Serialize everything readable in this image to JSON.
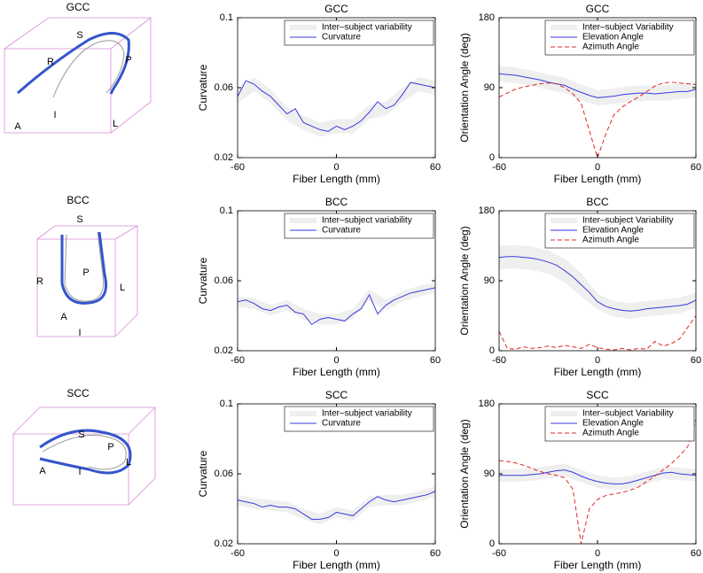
{
  "renders": [
    {
      "title": "GCC",
      "labels": [
        "S",
        "R",
        "P",
        "A",
        "L",
        "I"
      ]
    },
    {
      "title": "BCC",
      "labels": [
        "S",
        "P",
        "R",
        "L",
        "A",
        "I"
      ]
    },
    {
      "title": "SCC",
      "labels": [
        "S",
        "P",
        "A",
        "I",
        "L"
      ]
    }
  ],
  "chart_data": [
    {
      "type": "line",
      "title": "GCC",
      "xlabel": "Fiber Length (mm)",
      "ylabel": "Curvature",
      "x": [
        -60,
        -55,
        -50,
        -45,
        -40,
        -35,
        -30,
        -25,
        -20,
        -15,
        -10,
        -5,
        0,
        5,
        10,
        15,
        20,
        25,
        30,
        35,
        40,
        45,
        50,
        55,
        60
      ],
      "xlim": [
        -60,
        60
      ],
      "xticks": [
        -60,
        0,
        60
      ],
      "ylim": [
        0.02,
        0.1
      ],
      "yticks": [
        0.02,
        0.06,
        0.1
      ],
      "series": [
        {
          "name": "Inter–subject variability",
          "color": "#efefef",
          "x": [
            -60,
            -50,
            -40,
            -30,
            -20,
            -10,
            0,
            10,
            20,
            30,
            40,
            50,
            60
          ],
          "lower": [
            0.051,
            0.058,
            0.051,
            0.041,
            0.036,
            0.032,
            0.034,
            0.034,
            0.042,
            0.044,
            0.052,
            0.058,
            0.056
          ],
          "upper": [
            0.059,
            0.066,
            0.059,
            0.049,
            0.044,
            0.04,
            0.042,
            0.042,
            0.05,
            0.052,
            0.06,
            0.066,
            0.064
          ]
        },
        {
          "name": "Curvature",
          "color": "#3a3adf",
          "style": "solid",
          "values": [
            0.055,
            0.064,
            0.062,
            0.058,
            0.055,
            0.05,
            0.045,
            0.048,
            0.04,
            0.038,
            0.036,
            0.035,
            0.038,
            0.036,
            0.038,
            0.041,
            0.046,
            0.052,
            0.048,
            0.05,
            0.056,
            0.063,
            0.062,
            0.061,
            0.06
          ]
        }
      ]
    },
    {
      "type": "line",
      "title": "GCC",
      "xlabel": "Fiber Length (mm)",
      "ylabel": "Orientation Angle (deg)",
      "x": [
        -60,
        -55,
        -50,
        -45,
        -40,
        -35,
        -30,
        -25,
        -20,
        -15,
        -10,
        -5,
        0,
        5,
        10,
        15,
        20,
        25,
        30,
        35,
        40,
        45,
        50,
        55,
        60
      ],
      "xlim": [
        -60,
        60
      ],
      "xticks": [
        -60,
        0,
        60
      ],
      "ylim": [
        0,
        180
      ],
      "yticks": [
        0,
        90,
        180
      ],
      "series": [
        {
          "name": "Inter–subject Variability",
          "color": "#efefef",
          "x": [
            -60,
            -50,
            -40,
            -30,
            -20,
            -10,
            0,
            10,
            20,
            30,
            40,
            50,
            60
          ],
          "lower": [
            98,
            96,
            92,
            87,
            83,
            74,
            67,
            69,
            72,
            73,
            73,
            75,
            78
          ],
          "upper": [
            118,
            116,
            112,
            107,
            103,
            94,
            87,
            89,
            92,
            93,
            93,
            95,
            98
          ]
        },
        {
          "name": "Elevation Angle",
          "color": "#3a3adf",
          "style": "solid",
          "values": [
            108,
            107,
            106,
            104,
            102,
            100,
            97,
            95,
            93,
            88,
            84,
            80,
            77,
            78,
            79,
            81,
            82,
            83,
            83,
            82,
            83,
            84,
            85,
            85,
            88
          ]
        },
        {
          "name": "Azimuth Angle",
          "color": "#e02828",
          "style": "dashed",
          "values": [
            78,
            83,
            88,
            91,
            93,
            95,
            96,
            95,
            90,
            82,
            70,
            35,
            0,
            30,
            55,
            65,
            72,
            78,
            85,
            92,
            96,
            97,
            96,
            95,
            94
          ]
        }
      ]
    },
    {
      "type": "line",
      "title": "BCC",
      "xlabel": "Fiber Length (mm)",
      "ylabel": "Curvature",
      "x": [
        -60,
        -55,
        -50,
        -45,
        -40,
        -35,
        -30,
        -25,
        -20,
        -15,
        -10,
        -5,
        0,
        5,
        10,
        15,
        20,
        25,
        30,
        35,
        40,
        45,
        50,
        55,
        60
      ],
      "xlim": [
        -60,
        60
      ],
      "xticks": [
        -60,
        0,
        60
      ],
      "ylim": [
        0.02,
        0.1
      ],
      "yticks": [
        0.02,
        0.06,
        0.1
      ],
      "series": [
        {
          "name": "Inter–subject variability",
          "color": "#efefef",
          "x": [
            -60,
            -50,
            -40,
            -30,
            -20,
            -10,
            0,
            10,
            20,
            30,
            40,
            50,
            60
          ],
          "lower": [
            0.045,
            0.044,
            0.04,
            0.043,
            0.038,
            0.035,
            0.035,
            0.038,
            0.049,
            0.043,
            0.048,
            0.051,
            0.053
          ],
          "upper": [
            0.051,
            0.05,
            0.046,
            0.049,
            0.044,
            0.041,
            0.041,
            0.044,
            0.055,
            0.049,
            0.054,
            0.057,
            0.059
          ]
        },
        {
          "name": "Curvature",
          "color": "#3a3adf",
          "style": "solid",
          "values": [
            0.048,
            0.049,
            0.047,
            0.044,
            0.043,
            0.045,
            0.046,
            0.042,
            0.041,
            0.035,
            0.038,
            0.039,
            0.038,
            0.037,
            0.041,
            0.044,
            0.052,
            0.041,
            0.046,
            0.049,
            0.051,
            0.053,
            0.054,
            0.055,
            0.056
          ]
        }
      ]
    },
    {
      "type": "line",
      "title": "BCC",
      "xlabel": "Fiber Length (mm)",
      "ylabel": "Orientation Angle (deg)",
      "x": [
        -60,
        -55,
        -50,
        -45,
        -40,
        -35,
        -30,
        -25,
        -20,
        -15,
        -10,
        -5,
        0,
        5,
        10,
        15,
        20,
        25,
        30,
        35,
        40,
        45,
        50,
        55,
        60
      ],
      "xlim": [
        -60,
        60
      ],
      "xticks": [
        -60,
        0,
        60
      ],
      "ylim": [
        0,
        180
      ],
      "yticks": [
        0,
        90,
        180
      ],
      "series": [
        {
          "name": "Inter–subject Variability",
          "color": "#efefef",
          "x": [
            -60,
            -50,
            -40,
            -30,
            -20,
            -10,
            0,
            10,
            20,
            30,
            40,
            50,
            60
          ],
          "lower": [
            105,
            106,
            104,
            99,
            88,
            70,
            53,
            44,
            41,
            44,
            46,
            48,
            55
          ],
          "upper": [
            135,
            136,
            134,
            129,
            118,
            100,
            73,
            64,
            61,
            64,
            66,
            68,
            75
          ]
        },
        {
          "name": "Elevation Angle",
          "color": "#3a3adf",
          "style": "solid",
          "values": [
            120,
            121,
            121,
            120,
            119,
            117,
            114,
            110,
            103,
            95,
            85,
            75,
            63,
            57,
            54,
            52,
            51,
            52,
            54,
            55,
            56,
            57,
            58,
            60,
            65
          ]
        },
        {
          "name": "Azimuth Angle",
          "color": "#e02828",
          "style": "dashed",
          "values": [
            25,
            3,
            2,
            5,
            3,
            4,
            6,
            4,
            7,
            5,
            3,
            8,
            4,
            2,
            1,
            3,
            1,
            3,
            2,
            12,
            6,
            9,
            15,
            30,
            45
          ]
        }
      ]
    },
    {
      "type": "line",
      "title": "SCC",
      "xlabel": "Fiber Length (mm)",
      "ylabel": "Curvature",
      "x": [
        -60,
        -55,
        -50,
        -45,
        -40,
        -35,
        -30,
        -25,
        -20,
        -15,
        -10,
        -5,
        0,
        5,
        10,
        15,
        20,
        25,
        30,
        35,
        40,
        45,
        50,
        55,
        60
      ],
      "xlim": [
        -60,
        60
      ],
      "xticks": [
        -60,
        0,
        60
      ],
      "ylim": [
        0.02,
        0.1
      ],
      "yticks": [
        0.02,
        0.06,
        0.1
      ],
      "series": [
        {
          "name": "Inter–subject variability",
          "color": "#efefef",
          "x": [
            -60,
            -50,
            -40,
            -30,
            -20,
            -10,
            0,
            10,
            20,
            30,
            40,
            50,
            60
          ],
          "lower": [
            0.042,
            0.04,
            0.039,
            0.038,
            0.034,
            0.031,
            0.035,
            0.033,
            0.041,
            0.042,
            0.042,
            0.044,
            0.047
          ],
          "upper": [
            0.048,
            0.046,
            0.045,
            0.044,
            0.04,
            0.037,
            0.041,
            0.039,
            0.047,
            0.048,
            0.048,
            0.05,
            0.053
          ]
        },
        {
          "name": "Curvature",
          "color": "#3a3adf",
          "style": "solid",
          "values": [
            0.045,
            0.044,
            0.043,
            0.041,
            0.042,
            0.041,
            0.041,
            0.04,
            0.037,
            0.034,
            0.034,
            0.035,
            0.038,
            0.037,
            0.036,
            0.04,
            0.044,
            0.047,
            0.045,
            0.044,
            0.045,
            0.046,
            0.047,
            0.048,
            0.05
          ]
        }
      ]
    },
    {
      "type": "line",
      "title": "SCC",
      "xlabel": "Fiber Length (mm)",
      "ylabel": "Orientation Angle (deg)",
      "x": [
        -60,
        -55,
        -50,
        -45,
        -40,
        -35,
        -30,
        -25,
        -20,
        -15,
        -10,
        -5,
        0,
        5,
        10,
        15,
        20,
        25,
        30,
        35,
        40,
        45,
        50,
        55,
        60
      ],
      "xlim": [
        -60,
        60
      ],
      "xticks": [
        -60,
        0,
        60
      ],
      "ylim": [
        0,
        180
      ],
      "yticks": [
        0,
        90,
        180
      ],
      "series": [
        {
          "name": "Inter–subject Variability",
          "color": "#efefef",
          "x": [
            -60,
            -50,
            -40,
            -30,
            -20,
            -10,
            0,
            10,
            20,
            30,
            40,
            50,
            60
          ],
          "lower": [
            80,
            80,
            81,
            84,
            87,
            79,
            72,
            69,
            71,
            77,
            83,
            82,
            80
          ],
          "upper": [
            96,
            96,
            97,
            100,
            103,
            95,
            88,
            85,
            87,
            93,
            99,
            98,
            96
          ]
        },
        {
          "name": "Elevation Angle",
          "color": "#3a3adf",
          "style": "solid",
          "values": [
            88,
            88,
            88,
            88,
            89,
            90,
            92,
            94,
            95,
            92,
            87,
            83,
            80,
            78,
            77,
            77,
            79,
            82,
            85,
            88,
            91,
            92,
            90,
            89,
            88
          ]
        },
        {
          "name": "Azimuth Angle",
          "color": "#e02828",
          "style": "dashed",
          "values": [
            107,
            106,
            104,
            101,
            97,
            93,
            90,
            88,
            85,
            70,
            0,
            45,
            57,
            62,
            64,
            66,
            69,
            73,
            80,
            87,
            95,
            103,
            113,
            125,
            160
          ]
        }
      ]
    }
  ]
}
